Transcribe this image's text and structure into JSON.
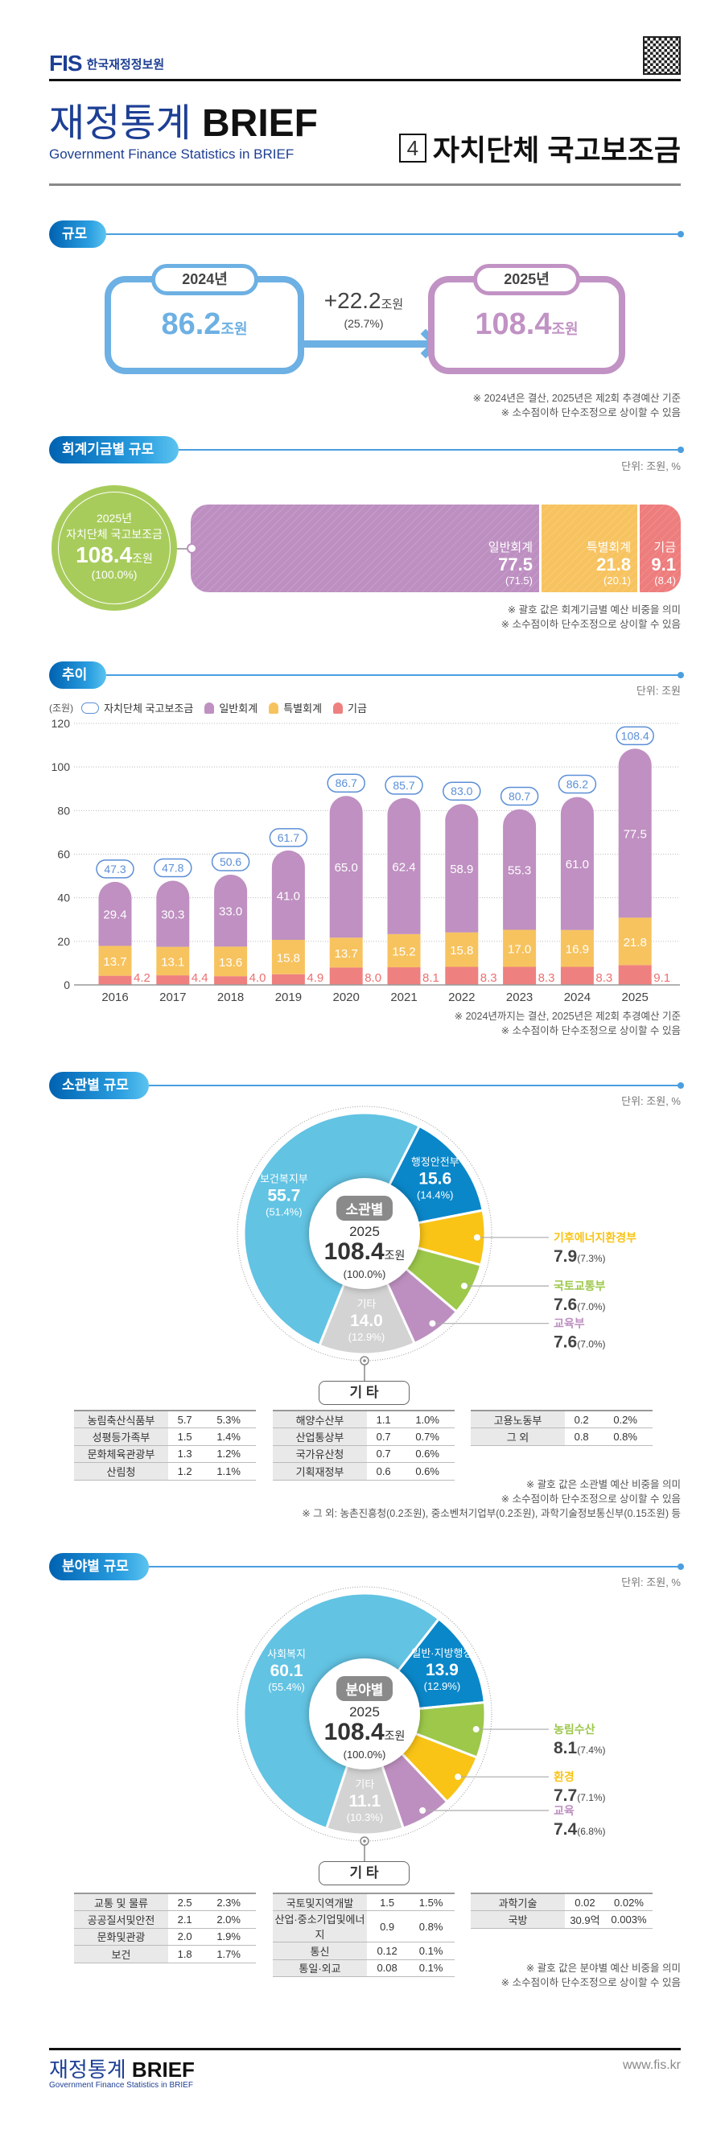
{
  "header": {
    "logo_text": "FIS",
    "org_name": "한국재정정보원",
    "brand_kr": "재정통계",
    "brand_en": "BRIEF",
    "brand_sub": "Government Finance Statistics in BRIEF",
    "issue_number": "4",
    "issue_title": "자치단체 국고보조금",
    "qr_icon": "qr-code"
  },
  "scale": {
    "section_title": "규모",
    "prev": {
      "year": "2024년",
      "value": "86.2",
      "unit": "조원",
      "color": "#6db0e3"
    },
    "curr": {
      "year": "2025년",
      "value": "108.4",
      "unit": "조원",
      "color": "#c192c4"
    },
    "change": {
      "value": "+22.2",
      "unit": "조원",
      "pct": "(25.7%)"
    },
    "notes": [
      "※ 2024년은 결산, 2025년은 제2회 추경예산 기준",
      "※ 소수점이하 단수조정으로 상이할 수 있음"
    ]
  },
  "fund": {
    "section_title": "회계기금별 규모",
    "unit_note": "단위: 조원, %",
    "total": {
      "year": "2025년",
      "name": "자치단체 국고보조금",
      "value": "108.4",
      "unit": "조원",
      "pct": "(100.0%)"
    },
    "segments": [
      {
        "name": "일반회계",
        "value": "77.5",
        "pct": "(71.5)",
        "share": 71.5,
        "color": "#bd8fc1"
      },
      {
        "name": "특별회계",
        "value": "21.8",
        "pct": "(20.1)",
        "share": 20.1,
        "color": "#f7c360"
      },
      {
        "name": "기금",
        "value": "9.1",
        "pct": "(8.4)",
        "share": 8.4,
        "color": "#ee7d7d"
      }
    ],
    "notes": [
      "※ 괄호 값은 회계기금별 예산 비중을 의미",
      "※ 소수점이하 단수조정으로 상이할 수 있음"
    ]
  },
  "trend": {
    "section_title": "추이",
    "unit_note": "단위: 조원",
    "notes": [
      "※ 2024년까지는 결산, 2025년은 제2회 추경예산 기준",
      "※ 소수점이하 단수조정으로 상이할 수 있음"
    ]
  },
  "ministry": {
    "section_title": "소관별 규모",
    "unit_note": "단위: 조원, %",
    "center": {
      "badge": "소관별",
      "year": "2025",
      "value": "108.4",
      "unit": "조원",
      "pct": "(100.0%)"
    },
    "other_title": "기 타",
    "other_tables": [
      [
        [
          "농림축산식품부",
          "5.7",
          "5.3%"
        ],
        [
          "성평등가족부",
          "1.5",
          "1.4%"
        ],
        [
          "문화체육관광부",
          "1.3",
          "1.2%"
        ],
        [
          "산림청",
          "1.2",
          "1.1%"
        ]
      ],
      [
        [
          "해양수산부",
          "1.1",
          "1.0%"
        ],
        [
          "산업통상부",
          "0.7",
          "0.7%"
        ],
        [
          "국가유산청",
          "0.7",
          "0.6%"
        ],
        [
          "기획재정부",
          "0.6",
          "0.6%"
        ]
      ],
      [
        [
          "고용노동부",
          "0.2",
          "0.2%"
        ],
        [
          "그 외",
          "0.8",
          "0.8%"
        ]
      ]
    ],
    "notes": [
      "※ 괄호 값은 소관별 예산 비중을 의미",
      "※ 소수점이하 단수조정으로 상이할 수 있음",
      "※ 그 외: 농촌진흥청(0.2조원), 중소벤처기업부(0.2조원), 과학기술정보통신부(0.15조원) 등"
    ]
  },
  "field": {
    "section_title": "분야별 규모",
    "unit_note": "단위: 조원, %",
    "center": {
      "badge": "분야별",
      "year": "2025",
      "value": "108.4",
      "unit": "조원",
      "pct": "(100.0%)"
    },
    "other_title": "기 타",
    "other_tables": [
      [
        [
          "교통 및 물류",
          "2.5",
          "2.3%"
        ],
        [
          "공공질서및안전",
          "2.1",
          "2.0%"
        ],
        [
          "문화및관광",
          "2.0",
          "1.9%"
        ],
        [
          "보건",
          "1.8",
          "1.7%"
        ]
      ],
      [
        [
          "국토및지역개발",
          "1.5",
          "1.5%"
        ],
        [
          "산업·중소기업및에너지",
          "0.9",
          "0.8%"
        ],
        [
          "통신",
          "0.12",
          "0.1%"
        ],
        [
          "통일·외교",
          "0.08",
          "0.1%"
        ]
      ],
      [
        [
          "과학기술",
          "0.02",
          "0.02%"
        ],
        [
          "국방",
          "30.9억",
          "0.003%"
        ]
      ]
    ],
    "notes": [
      "※ 괄호 값은 분야별 예산 비중을 의미",
      "※ 소수점이하 단수조정으로 상이할 수 있음"
    ]
  },
  "footer": {
    "brand_kr": "재정통계",
    "brand_en": "BRIEF",
    "brand_sub": "Government Finance Statistics in BRIEF",
    "url": "www.fis.kr"
  },
  "chart_data": [
    {
      "type": "bar",
      "stacked": true,
      "ylabel": "(조원)",
      "ylim": [
        0,
        120
      ],
      "yticks": [
        0,
        20,
        40,
        60,
        80,
        100,
        120
      ],
      "grid": true,
      "legend": "top-left",
      "categories": [
        "2016",
        "2017",
        "2018",
        "2019",
        "2020",
        "2021",
        "2022",
        "2023",
        "2024",
        "2025"
      ],
      "total": {
        "name": "자치단체 국고보조금",
        "values": [
          47.3,
          47.8,
          50.6,
          61.7,
          86.7,
          85.7,
          83.0,
          80.7,
          86.2,
          108.4
        ],
        "color": "#5b8fd6"
      },
      "series": [
        {
          "name": "기금",
          "values": [
            4.2,
            4.4,
            4.0,
            4.9,
            8.0,
            8.1,
            8.3,
            8.3,
            8.3,
            9.1
          ],
          "color": "#ef8080"
        },
        {
          "name": "특별회계",
          "values": [
            13.7,
            13.1,
            13.6,
            15.8,
            13.7,
            15.2,
            15.8,
            17.0,
            16.9,
            21.8
          ],
          "color": "#f7c35f"
        },
        {
          "name": "일반회계",
          "values": [
            29.4,
            30.3,
            33.0,
            41.0,
            65.0,
            62.4,
            58.9,
            55.3,
            61.0,
            77.5
          ],
          "color": "#bf90c1"
        }
      ]
    },
    {
      "type": "pie",
      "donut": true,
      "slices": [
        {
          "label": "행정안전부",
          "value": 15.6,
          "pct": 14.4,
          "color": "#0a87c9"
        },
        {
          "label": "기후에너지환경부",
          "value": 7.9,
          "pct": 7.3,
          "color": "#f9c416"
        },
        {
          "label": "국토교통부",
          "value": 7.6,
          "pct": 7.0,
          "color": "#9dc84a"
        },
        {
          "label": "교육부",
          "value": 7.6,
          "pct": 7.0,
          "color": "#bd8fc0"
        },
        {
          "label": "기타",
          "value": 14.0,
          "pct": 12.9,
          "color": "#d3d3d3"
        },
        {
          "label": "보건복지부",
          "value": 55.7,
          "pct": 51.4,
          "color": "#62c3e3"
        }
      ]
    },
    {
      "type": "pie",
      "donut": true,
      "slices": [
        {
          "label": "일반·지방행정",
          "value": 13.9,
          "pct": 12.9,
          "color": "#0a87c9"
        },
        {
          "label": "농림수산",
          "value": 8.1,
          "pct": 7.4,
          "color": "#9dc84a"
        },
        {
          "label": "환경",
          "value": 7.7,
          "pct": 7.1,
          "color": "#f9c416"
        },
        {
          "label": "교육",
          "value": 7.4,
          "pct": 6.8,
          "color": "#bd8fc0"
        },
        {
          "label": "기타",
          "value": 11.1,
          "pct": 10.3,
          "color": "#d3d3d3"
        },
        {
          "label": "사회복지",
          "value": 60.1,
          "pct": 55.4,
          "color": "#62c3e3"
        }
      ]
    }
  ]
}
